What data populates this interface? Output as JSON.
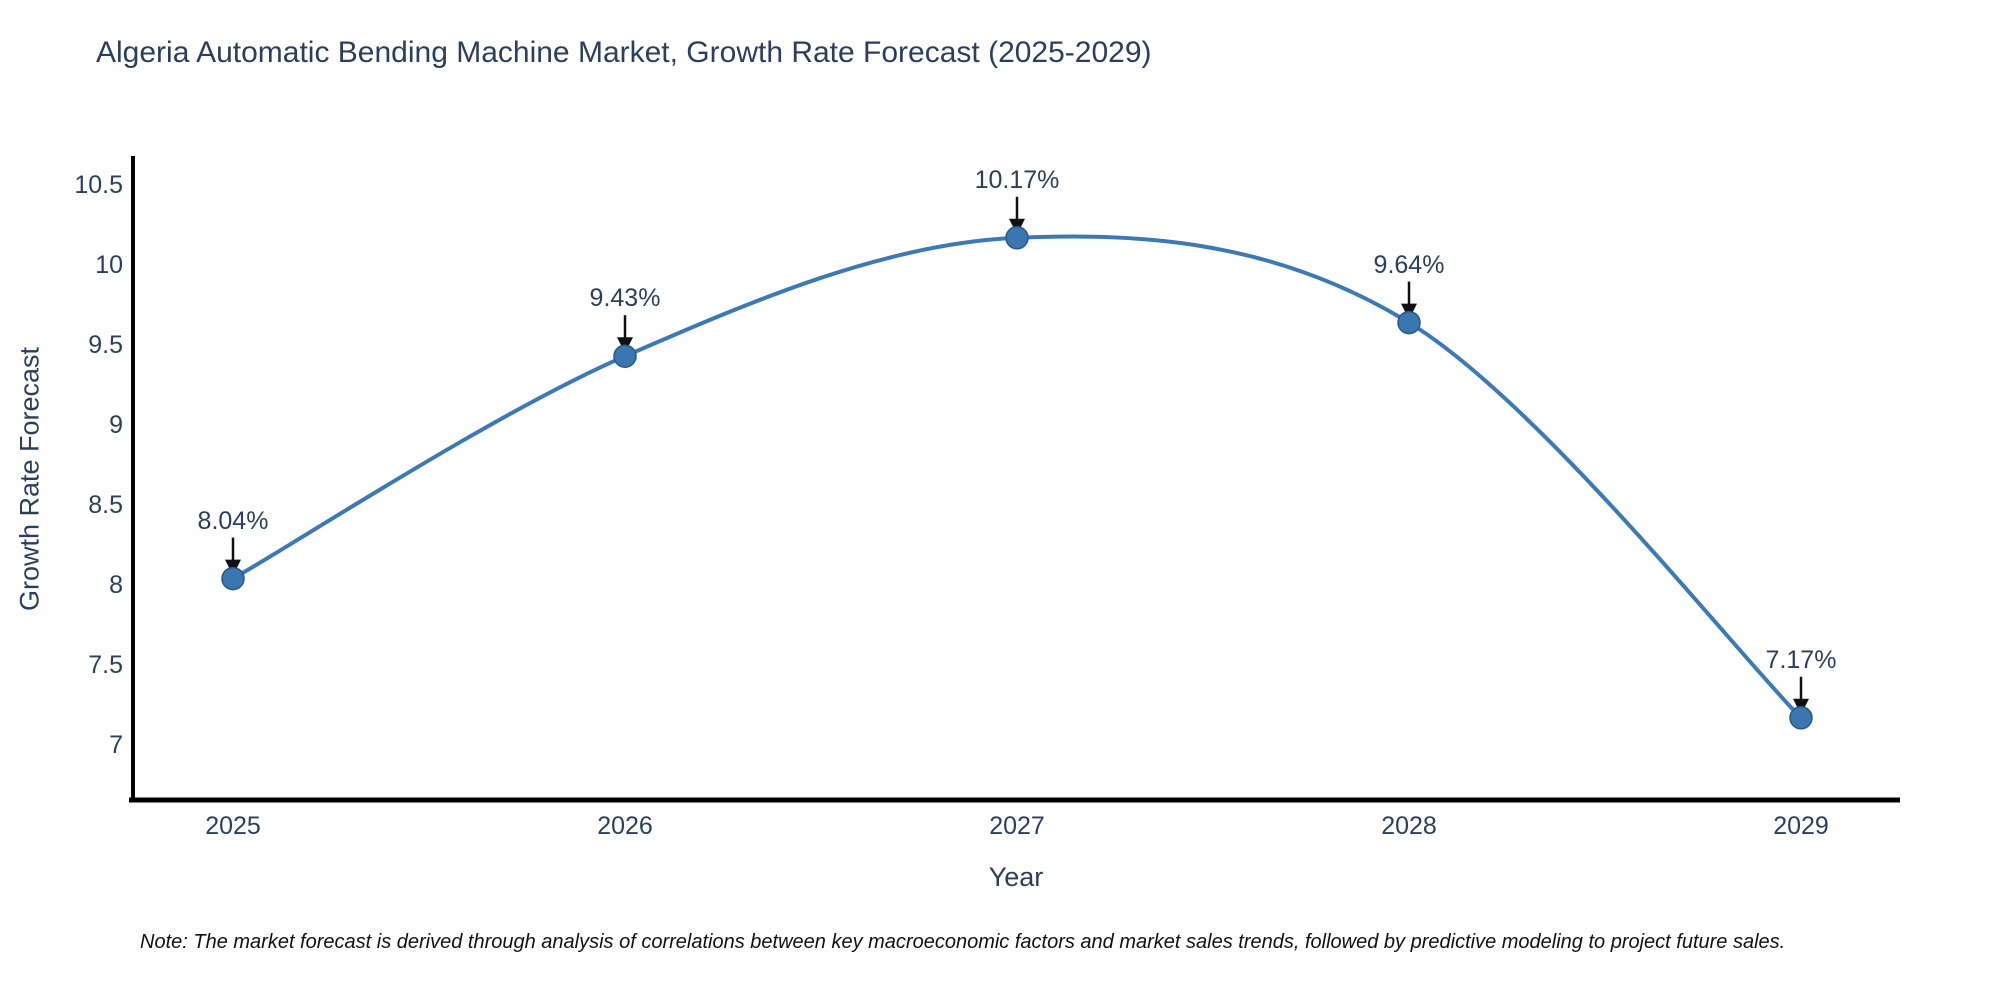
{
  "title": "Algeria Automatic Bending Machine Market, Growth Rate Forecast (2025-2029)",
  "note": "Note: The market forecast is derived through analysis of correlations between key macroeconomic factors and market sales trends, followed by predictive modeling to project future sales.",
  "chart_data": {
    "type": "line",
    "title": "Algeria Automatic Bending Machine Market, Growth Rate Forecast (2025-2029)",
    "xlabel": "Year",
    "ylabel": "Growth Rate Forecast",
    "x": [
      2025,
      2026,
      2027,
      2028,
      2029
    ],
    "series": [
      {
        "name": "Growth Rate Forecast",
        "values": [
          8.04,
          9.43,
          10.17,
          9.64,
          7.17
        ],
        "point_labels": [
          "8.04%",
          "9.43%",
          "10.17%",
          "9.64%",
          "7.17%"
        ]
      }
    ],
    "yticks": [
      7,
      7.5,
      8,
      8.5,
      9,
      9.5,
      10,
      10.5
    ],
    "ylim": [
      6.66,
      10.66
    ],
    "line_shape": "spline",
    "grid": false,
    "legend_position": "none",
    "annotations_have_arrows": true,
    "colors": {
      "line": "#3d7ab5",
      "marker_fill": "#3a76b0",
      "marker_border": "#27598a",
      "axis": "#000000",
      "arrow": "#111111",
      "text": "#2a3f5f",
      "note_text": "#111111",
      "background": "#ffffff"
    }
  }
}
